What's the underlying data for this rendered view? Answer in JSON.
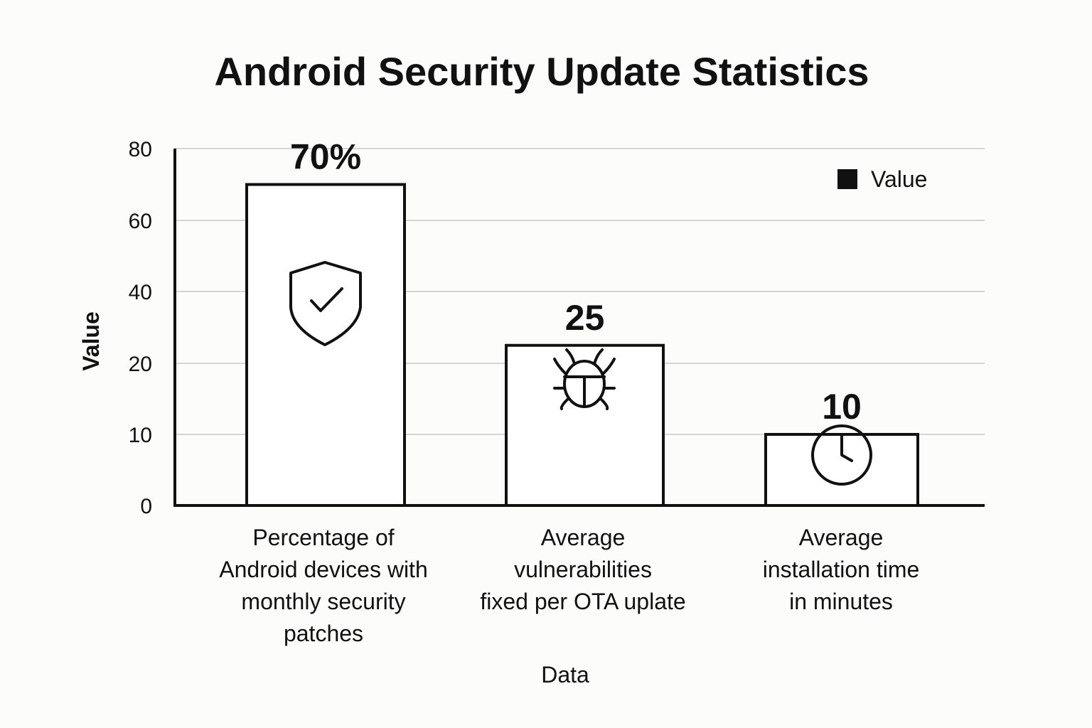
{
  "chart_data": {
    "type": "bar",
    "title": "Android Security Update Statistics",
    "xlabel": "Data",
    "ylabel": "Value",
    "y_tick_labels": [
      "0",
      "10",
      "20",
      "40",
      "60",
      "80"
    ],
    "categories": [
      [
        "Percentage of",
        "Android devices with",
        "monthly security",
        "patches"
      ],
      [
        "Average",
        "vulnerabilities",
        "fixed per OTA uplate"
      ],
      [
        "Average",
        "installation time",
        "in minutes"
      ]
    ],
    "values": [
      70,
      25,
      10
    ],
    "data_labels": [
      "70%",
      "25",
      "10"
    ],
    "icons": [
      "shield-check-icon",
      "bug-icon",
      "clock-icon"
    ],
    "legend": {
      "entries": [
        "Value"
      ],
      "placement": "top-right"
    },
    "grid": true,
    "colors": {
      "bar_fill": "#ffffff",
      "bar_stroke": "#111111",
      "grid": "#c8c8c8"
    }
  }
}
